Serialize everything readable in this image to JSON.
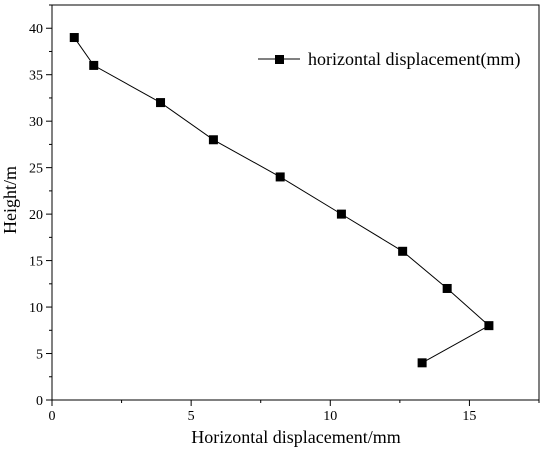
{
  "chart_data": {
    "type": "line",
    "xlabel": "Horizontal displacement/mm",
    "ylabel": "Height/m",
    "xlim": [
      0,
      17.5
    ],
    "ylim": [
      0,
      42.5
    ],
    "xticks": [
      0,
      5,
      10,
      15
    ],
    "yticks": [
      0,
      5,
      10,
      15,
      20,
      25,
      30,
      35,
      40
    ],
    "grid": false,
    "legend_position": "top-right",
    "series": [
      {
        "name": "horizontal displacement(mm)",
        "marker": "square",
        "color": "#000000",
        "x": [
          0.8,
          1.5,
          3.9,
          5.8,
          8.2,
          10.4,
          12.6,
          14.2,
          15.7,
          13.3
        ],
        "y": [
          39,
          36,
          32,
          28,
          24,
          20,
          16,
          12,
          8,
          4
        ]
      }
    ]
  }
}
